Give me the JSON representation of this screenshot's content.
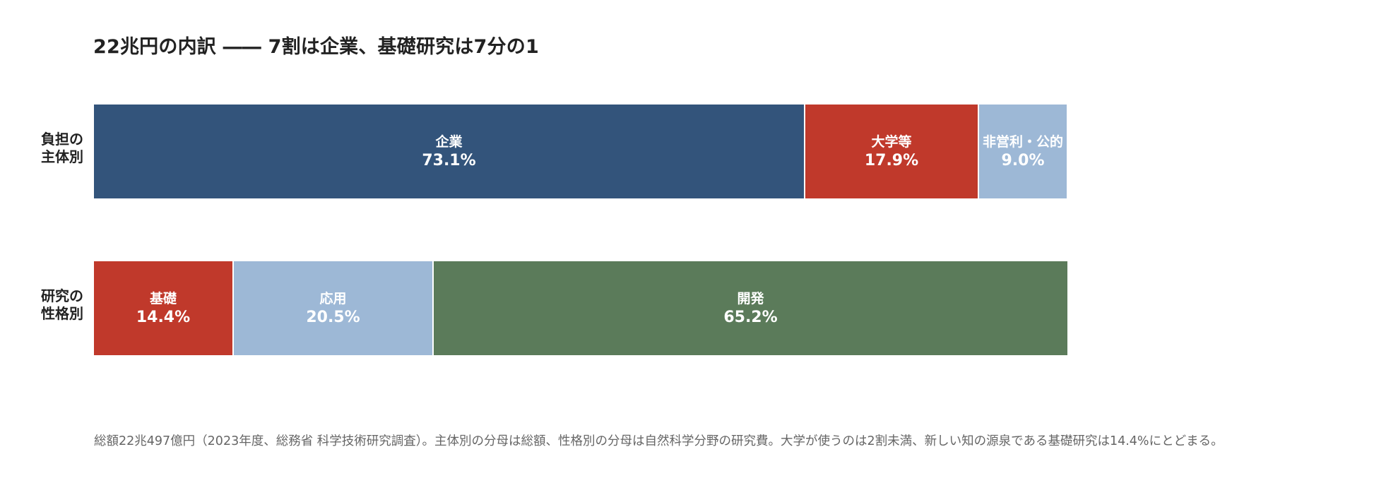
{
  "chart_data": {
    "type": "bar",
    "stacked": true,
    "orientation": "horizontal",
    "title": "22兆円の内訳 ―― 7割は企業、基礎研究は7分の1",
    "xlim": [
      0,
      100
    ],
    "unit": "%",
    "grid": false,
    "rows": [
      {
        "label_lines": [
          "負担の",
          "主体別"
        ],
        "segments": [
          {
            "name": "企業",
            "value": 73.1,
            "label": "73.1%",
            "color": "#33547b"
          },
          {
            "name": "大学等",
            "value": 17.9,
            "label": "17.9%",
            "color": "#c0392b"
          },
          {
            "name": "非営利・公的",
            "value": 9.0,
            "label": "9.0%",
            "color": "#9db8d6"
          }
        ]
      },
      {
        "label_lines": [
          "研究の",
          "性格別"
        ],
        "segments": [
          {
            "name": "基礎",
            "value": 14.4,
            "label": "14.4%",
            "color": "#c0392b"
          },
          {
            "name": "応用",
            "value": 20.5,
            "label": "20.5%",
            "color": "#9db8d6"
          },
          {
            "name": "開発",
            "value": 65.2,
            "label": "65.2%",
            "color": "#5b7b5a"
          }
        ]
      }
    ],
    "footnote": "総額22兆497億円（2023年度、総務省 科学技術研究調査）。主体別の分母は総額、性格別の分母は自然科学分野の研究費。大学が使うのは2割未満、新しい知の源泉である基礎研究は14.4%にとどまる。"
  }
}
